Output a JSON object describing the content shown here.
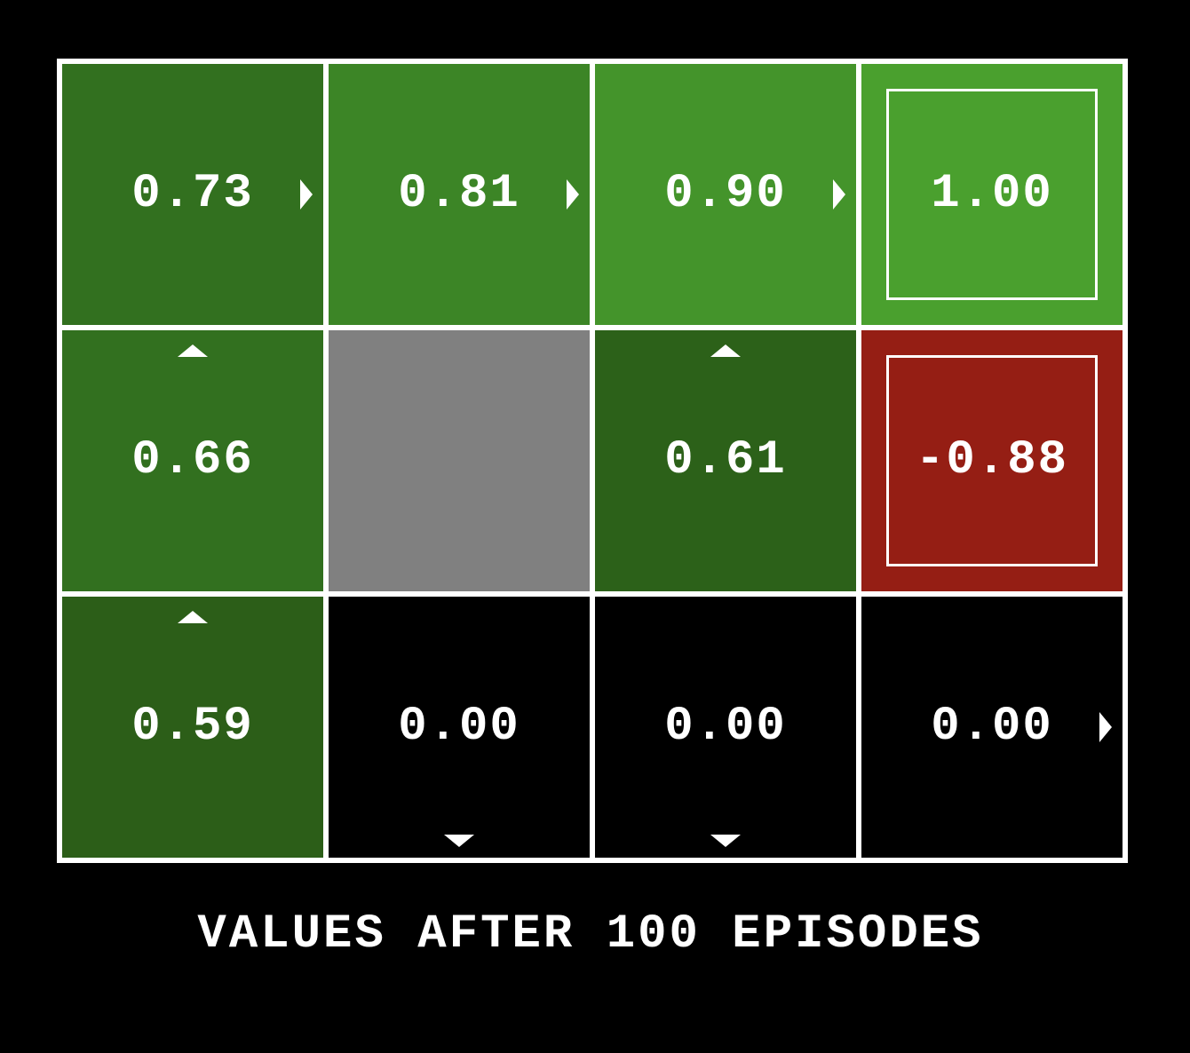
{
  "caption": "VALUES AFTER 100 EPISODES",
  "grid": {
    "rows": 3,
    "cols": 4,
    "cells": [
      {
        "row": 0,
        "col": 0,
        "value": "0.73",
        "arrow": "right",
        "color": "#32701f",
        "kind": "state"
      },
      {
        "row": 0,
        "col": 1,
        "value": "0.81",
        "arrow": "right",
        "color": "#3c8526",
        "kind": "state"
      },
      {
        "row": 0,
        "col": 2,
        "value": "0.90",
        "arrow": "right",
        "color": "#44942b",
        "kind": "state"
      },
      {
        "row": 0,
        "col": 3,
        "value": "1.00",
        "arrow": null,
        "color": "#4aa02e",
        "kind": "terminal"
      },
      {
        "row": 1,
        "col": 0,
        "value": "0.66",
        "arrow": "up",
        "color": "#32701f",
        "kind": "state"
      },
      {
        "row": 1,
        "col": 1,
        "value": "",
        "arrow": null,
        "color": "#808080",
        "kind": "wall"
      },
      {
        "row": 1,
        "col": 2,
        "value": "0.61",
        "arrow": "up",
        "color": "#2c6119",
        "kind": "state"
      },
      {
        "row": 1,
        "col": 3,
        "value": "-0.88",
        "arrow": null,
        "color": "#951e14",
        "kind": "terminal"
      },
      {
        "row": 2,
        "col": 0,
        "value": "0.59",
        "arrow": "up",
        "color": "#2c5e18",
        "kind": "state"
      },
      {
        "row": 2,
        "col": 1,
        "value": "0.00",
        "arrow": "down",
        "color": "#000000",
        "kind": "state"
      },
      {
        "row": 2,
        "col": 2,
        "value": "0.00",
        "arrow": "down",
        "color": "#000000",
        "kind": "state"
      },
      {
        "row": 2,
        "col": 3,
        "value": "0.00",
        "arrow": "right",
        "color": "#000000",
        "kind": "state"
      }
    ]
  }
}
